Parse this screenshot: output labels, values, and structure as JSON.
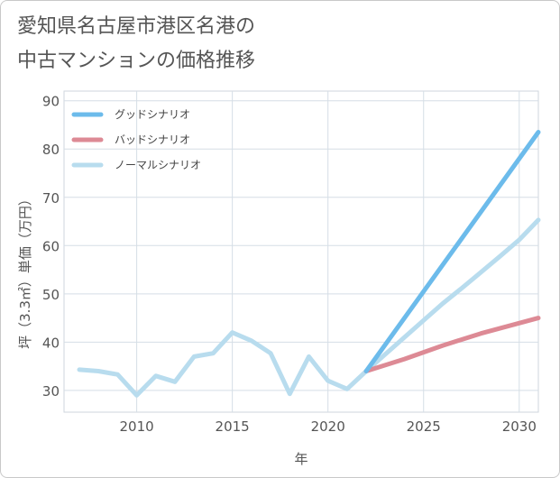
{
  "title_lines": [
    "愛知県名古屋市港区名港の",
    "中古マンションの価格推移"
  ],
  "chart_data": {
    "type": "line",
    "title": "愛知県名古屋市港区名港の中古マンションの価格推移",
    "xlabel": "年",
    "ylabel": "坪（3.3㎡）単価（万円）",
    "xlim": [
      2006.2,
      2031
    ],
    "ylim": [
      25.5,
      92
    ],
    "xticks": [
      2010,
      2015,
      2020,
      2025,
      2030
    ],
    "yticks": [
      30,
      40,
      50,
      60,
      70,
      80,
      90
    ],
    "grid": true,
    "legend_position": "top-left",
    "series": [
      {
        "name": "グッドシナリオ",
        "color": "#6cbbeb",
        "x": [
          2022,
          2031
        ],
        "y": [
          34.0,
          83.5
        ]
      },
      {
        "name": "バッドシナリオ",
        "color": "#dd8a95",
        "x": [
          2022,
          2024,
          2026,
          2028,
          2031
        ],
        "y": [
          34.0,
          36.5,
          39.3,
          41.8,
          45.0
        ]
      },
      {
        "name": "ノーマルシナリオ",
        "color": "#b8dcee",
        "x": [
          2007,
          2008,
          2009,
          2010,
          2011,
          2012,
          2013,
          2014,
          2015,
          2016,
          2017,
          2018,
          2019,
          2020,
          2021,
          2022,
          2023,
          2024,
          2025,
          2026,
          2027,
          2028,
          2029,
          2030,
          2031
        ],
        "y": [
          34.3,
          34.0,
          33.3,
          29.0,
          33.0,
          31.8,
          37.0,
          37.7,
          42.0,
          40.3,
          37.7,
          29.3,
          37.0,
          32.0,
          30.3,
          34.0,
          37.5,
          41.0,
          44.5,
          48.0,
          51.2,
          54.5,
          57.8,
          61.2,
          65.3
        ]
      }
    ]
  }
}
